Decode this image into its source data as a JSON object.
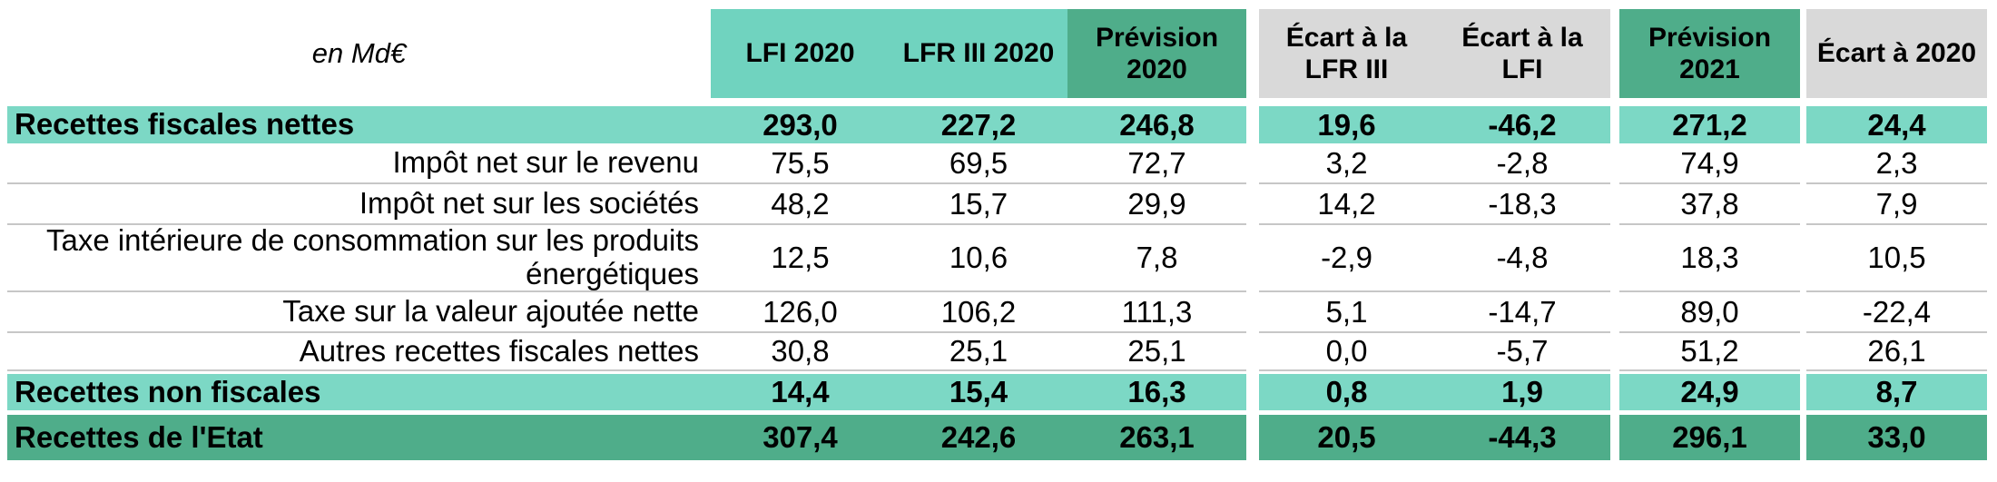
{
  "unit_label": "en Md€",
  "columns": [
    {
      "label": "LFI 2020"
    },
    {
      "label": "LFR III 2020"
    },
    {
      "label": "Prévision 2020"
    },
    {
      "label": "Écart à la LFR III"
    },
    {
      "label": "Écart à la LFI"
    },
    {
      "label": "Prévision 2021"
    },
    {
      "label": "Écart à 2020"
    }
  ],
  "rows": [
    {
      "label": "Recettes fiscales nettes",
      "style": "section-teal",
      "values": [
        "293,0",
        "227,2",
        "246,8",
        "19,6",
        "-46,2",
        "271,2",
        "24,4"
      ]
    },
    {
      "label": "Impôt net sur le revenu",
      "style": "detail",
      "values": [
        "75,5",
        "69,5",
        "72,7",
        "3,2",
        "-2,8",
        "74,9",
        "2,3"
      ]
    },
    {
      "label": "Impôt net sur les sociétés",
      "style": "detail",
      "values": [
        "48,2",
        "15,7",
        "29,9",
        "14,2",
        "-18,3",
        "37,8",
        "7,9"
      ]
    },
    {
      "label": "Taxe intérieure de consommation sur les produits énergétiques",
      "style": "detail",
      "values": [
        "12,5",
        "10,6",
        "7,8",
        "-2,9",
        "-4,8",
        "18,3",
        "10,5"
      ]
    },
    {
      "label": "Taxe sur la valeur ajoutée nette",
      "style": "detail",
      "values": [
        "126,0",
        "106,2",
        "111,3",
        "5,1",
        "-14,7",
        "89,0",
        "-22,4"
      ]
    },
    {
      "label": "Autres recettes fiscales nettes",
      "style": "detail",
      "values": [
        "30,8",
        "25,1",
        "25,1",
        "0,0",
        "-5,7",
        "51,2",
        "26,1"
      ]
    },
    {
      "label": "Recettes non fiscales",
      "style": "section-teal",
      "values": [
        "14,4",
        "15,4",
        "16,3",
        "0,8",
        "1,9",
        "24,9",
        "8,7"
      ]
    },
    {
      "label": "Recettes de l'Etat",
      "style": "section-green",
      "values": [
        "307,4",
        "242,6",
        "263,1",
        "20,5",
        "-44,3",
        "296,1",
        "33,0"
      ]
    }
  ],
  "colors": {
    "header_teal": "#70D3BF",
    "band_teal": "#7CD8C5",
    "green": "#4FAD8A",
    "header_gray": "#D9D9D9",
    "divider": "#C7C7C7"
  }
}
